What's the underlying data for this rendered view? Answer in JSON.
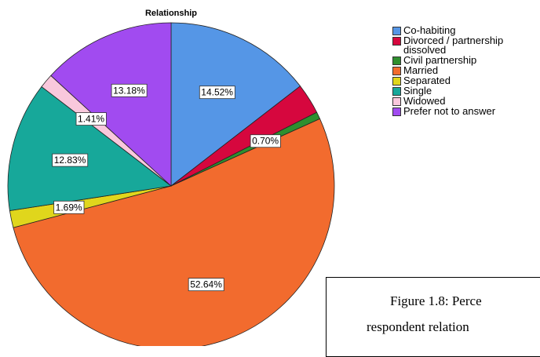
{
  "chart_data": {
    "type": "pie",
    "title": "Relationship",
    "categories": [
      "Co-habiting",
      "Divorced / partnership dissolved",
      "Civil partnership",
      "Married",
      "Separated",
      "Single",
      "Widowed",
      "Prefer not to answer"
    ],
    "values": [
      14.52,
      3.03,
      0.7,
      52.64,
      1.69,
      12.83,
      1.41,
      13.18
    ],
    "value_labels": [
      "14.52%",
      null,
      "0.70%",
      "52.64%",
      "1.69%",
      "12.83%",
      "1.41%",
      "13.18%"
    ],
    "colors": [
      "#5596e6",
      "#d6073e",
      "#2f8f2f",
      "#f26b2e",
      "#e0d61c",
      "#17a89a",
      "#f9c8dc",
      "#a14bf0"
    ],
    "legend": "right"
  },
  "caption": {
    "lines": [
      "Figure 1.8: Perce",
      "respondent relation"
    ]
  }
}
